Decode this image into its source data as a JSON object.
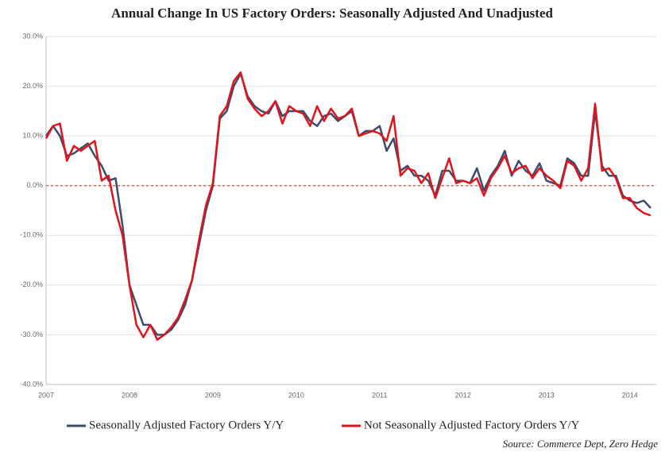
{
  "chart_data": {
    "type": "line",
    "title": "Annual Change In US Factory Orders: Seasonally Adjusted And Unadjusted",
    "source": "Source: Commerce Dept, Zero Hedge",
    "categories": [
      "2007",
      null,
      null,
      null,
      null,
      null,
      null,
      null,
      null,
      null,
      null,
      null,
      "2008",
      null,
      null,
      null,
      null,
      null,
      null,
      null,
      null,
      null,
      null,
      null,
      "2009",
      null,
      null,
      null,
      null,
      null,
      null,
      null,
      null,
      null,
      null,
      null,
      "2010",
      null,
      null,
      null,
      null,
      null,
      null,
      null,
      null,
      null,
      null,
      null,
      "2011",
      null,
      null,
      null,
      null,
      null,
      null,
      null,
      null,
      null,
      null,
      null,
      "2012",
      null,
      null,
      null,
      null,
      null,
      null,
      null,
      null,
      null,
      null,
      null,
      "2013",
      null,
      null,
      null,
      null,
      null,
      null,
      null,
      null,
      null,
      null,
      null,
      "2014",
      null,
      null,
      null
    ],
    "series": [
      {
        "name": "Seasonally Adjusted Factory Orders Y/Y",
        "color": "#3d4b6e",
        "values": [
          10,
          12,
          10,
          6,
          6.5,
          7.5,
          8.5,
          6,
          4,
          1,
          1.5,
          -8,
          -20,
          -24,
          -28,
          -28,
          -30,
          -30,
          -29,
          -27,
          -24,
          -19,
          -12,
          -5,
          0,
          13.5,
          15,
          20,
          22.5,
          18,
          16,
          15,
          14.5,
          17,
          14,
          15,
          15,
          15,
          13,
          12,
          14,
          14.5,
          13,
          14,
          15,
          10,
          11,
          11,
          12,
          7,
          9.5,
          3,
          4,
          2,
          2,
          1,
          -2,
          3,
          3,
          1,
          1,
          0.5,
          3.5,
          -1,
          2,
          4,
          7,
          2,
          5,
          3,
          2,
          4.5,
          1,
          0.5,
          0,
          5.5,
          4.5,
          2,
          2,
          15,
          4,
          2,
          2,
          -2,
          -3,
          -3.5,
          -3,
          -4.5
        ]
      },
      {
        "name": "Not Seasonally Adjusted Factory Orders Y/Y",
        "color": "#e0141c",
        "values": [
          9.5,
          12,
          12.5,
          5,
          8,
          7,
          8,
          9,
          1,
          2,
          -5,
          -10,
          -20,
          -28,
          -30.5,
          -28,
          -31,
          -30,
          -28.5,
          -26.5,
          -23,
          -19,
          -11,
          -4,
          0.5,
          14,
          16,
          21,
          22.8,
          17.5,
          15.5,
          14,
          15,
          17,
          12.5,
          16,
          15,
          14.5,
          12,
          16,
          13,
          15.5,
          13.5,
          14,
          15.5,
          10,
          10.5,
          11,
          10.5,
          9,
          14,
          2,
          3.5,
          3,
          0.5,
          2.5,
          -2.5,
          1.5,
          5.5,
          0.5,
          1,
          0.5,
          1.5,
          -2,
          1.5,
          3.5,
          6,
          2.5,
          3.5,
          4,
          1.5,
          3.5,
          2,
          1,
          -0.5,
          5,
          4,
          1,
          3.5,
          16.5,
          3,
          3.5,
          1.5,
          -2.5,
          -2.5,
          -4.5,
          -5.5,
          -6
        ]
      }
    ],
    "ylim": [
      -40,
      30
    ],
    "yticks": [
      {
        "value": -40,
        "label": "-40.0%"
      },
      {
        "value": -30,
        "label": "-30.0%"
      },
      {
        "value": -20,
        "label": "-20.0%"
      },
      {
        "value": -10,
        "label": "-10.0%"
      },
      {
        "value": 0,
        "label": "0.0%"
      },
      {
        "value": 10,
        "label": "10.0%"
      },
      {
        "value": 20,
        "label": "20.0%"
      },
      {
        "value": 30,
        "label": "30.0%"
      }
    ],
    "grid": true,
    "hline": 0,
    "hline_color": "#d02020",
    "legend": "bottom"
  }
}
